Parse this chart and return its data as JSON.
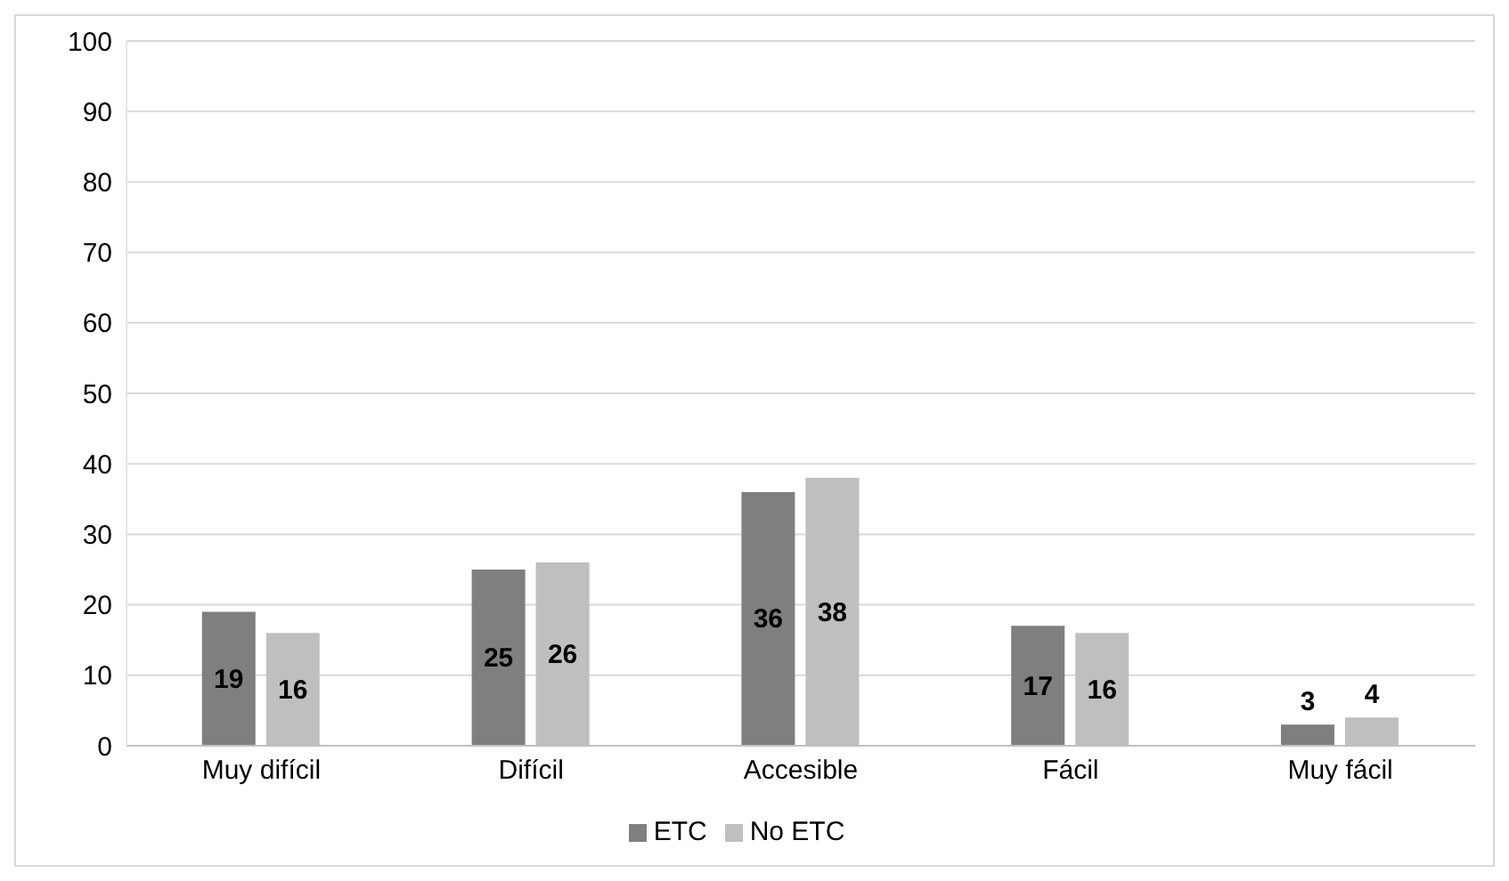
{
  "chart_data": {
    "type": "bar",
    "categories": [
      "Muy difícil",
      "Difícil",
      "Accesible",
      "Fácil",
      "Muy fácil"
    ],
    "series": [
      {
        "name": "ETC",
        "color": "#7f7f7f",
        "values": [
          19,
          25,
          36,
          17,
          3
        ]
      },
      {
        "name": "No ETC",
        "color": "#bfbfbf",
        "values": [
          16,
          26,
          38,
          16,
          4
        ]
      }
    ],
    "ylim": [
      0,
      100
    ],
    "yticks": [
      0,
      10,
      20,
      30,
      40,
      50,
      60,
      70,
      80,
      90,
      100
    ],
    "grid": "y",
    "legend": "bottom",
    "data_labels": true
  }
}
